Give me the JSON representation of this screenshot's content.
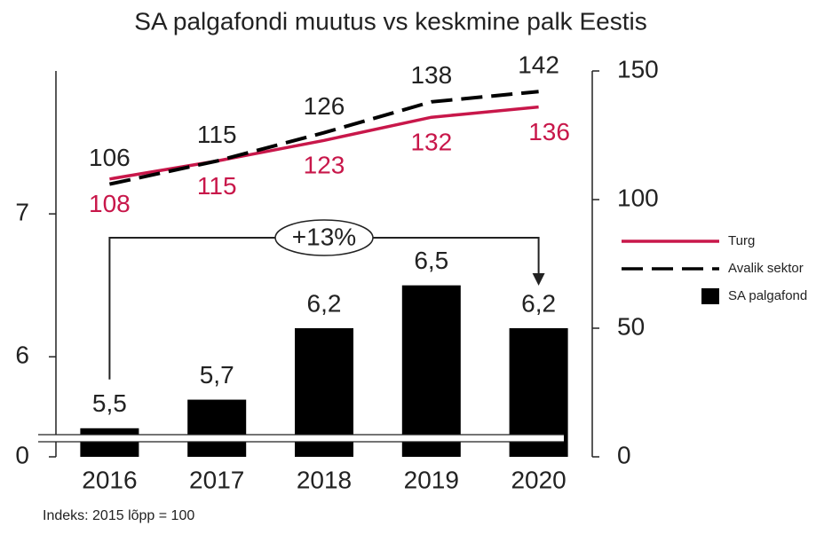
{
  "chart_data": {
    "type": "combo",
    "title": "SA palgafondi muutus vs keskmine palk Eestis",
    "footnote": "Indeks: 2015 lõpp = 100",
    "categories": [
      "2016",
      "2017",
      "2018",
      "2019",
      "2020"
    ],
    "ylim": [
      5.3,
      8
    ],
    "yticks": [
      0,
      6,
      7
    ],
    "axis_break": true,
    "y2lim": [
      0,
      150
    ],
    "y2ticks": [
      0,
      50,
      100,
      150
    ],
    "annotation": "+13%",
    "series": [
      {
        "name": "SA palgafond",
        "type": "bar",
        "color": "#000000",
        "values": [
          5.5,
          5.7,
          6.2,
          6.5,
          6.2
        ],
        "value_labels": [
          "5,5",
          "5,7",
          "6,2",
          "6,5",
          "6,2"
        ]
      },
      {
        "name": "Turg",
        "type": "line",
        "axis": "y2",
        "color": "#c8174a",
        "values": [
          108,
          115,
          123,
          132,
          136
        ]
      },
      {
        "name": "Avalik sektor",
        "type": "line",
        "axis": "y2",
        "color": "#000000",
        "line_style": "dashed",
        "values": [
          106,
          115,
          126,
          138,
          142
        ]
      }
    ]
  }
}
